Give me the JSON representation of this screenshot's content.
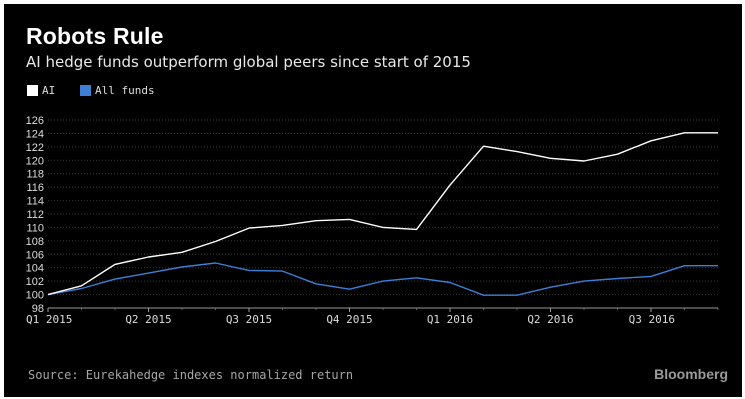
{
  "title": "Robots Rule",
  "subtitle": "AI hedge funds outperform global peers since start of 2015",
  "source": "Source: Eurekahedge indexes normalized return",
  "brand": "Bloomberg",
  "colors": {
    "background": "#000000",
    "ai": "#ffffff",
    "all_funds": "#3d7fd6",
    "grid": "#3a3a3a"
  },
  "chart_data": {
    "type": "line",
    "ylim": [
      98,
      126
    ],
    "y_ticks": [
      "98",
      "100",
      "102",
      "104",
      "106",
      "108",
      "110",
      "112",
      "114",
      "116",
      "118",
      "120",
      "122",
      "124",
      "126"
    ],
    "x_tick_labels": [
      "Q1 2015",
      "Q2 2015",
      "Q3 2015",
      "Q4 2015",
      "Q1 2016",
      "Q2 2016",
      "Q3 2016"
    ],
    "x": [
      "Jan 2015",
      "Feb 2015",
      "Mar 2015",
      "Apr 2015",
      "May 2015",
      "Jun 2015",
      "Jul 2015",
      "Aug 2015",
      "Sep 2015",
      "Oct 2015",
      "Nov 2015",
      "Dec 2015",
      "Jan 2016",
      "Feb 2016",
      "Mar 2016",
      "Apr 2016",
      "May 2016",
      "Jun 2016",
      "Jul 2016",
      "Aug 2016",
      "Sep 2016"
    ],
    "series": [
      {
        "name": "AI",
        "color": "#ffffff",
        "values": [
          100.0,
          101.3,
          104.5,
          105.6,
          106.3,
          107.9,
          109.9,
          110.3,
          111.0,
          111.2,
          110.0,
          109.7,
          116.3,
          122.1,
          121.3,
          120.3,
          119.9,
          120.9,
          122.9,
          124.1,
          124.1
        ]
      },
      {
        "name": "All funds",
        "color": "#3d7fd6",
        "values": [
          100.0,
          100.9,
          102.3,
          103.2,
          104.1,
          104.7,
          103.6,
          103.5,
          101.6,
          100.8,
          102.0,
          102.5,
          101.8,
          99.9,
          99.9,
          101.1,
          102.0,
          102.4,
          102.7,
          104.3,
          104.3
        ]
      }
    ],
    "grid": "horizontal, dotted",
    "legend": "top-left"
  }
}
